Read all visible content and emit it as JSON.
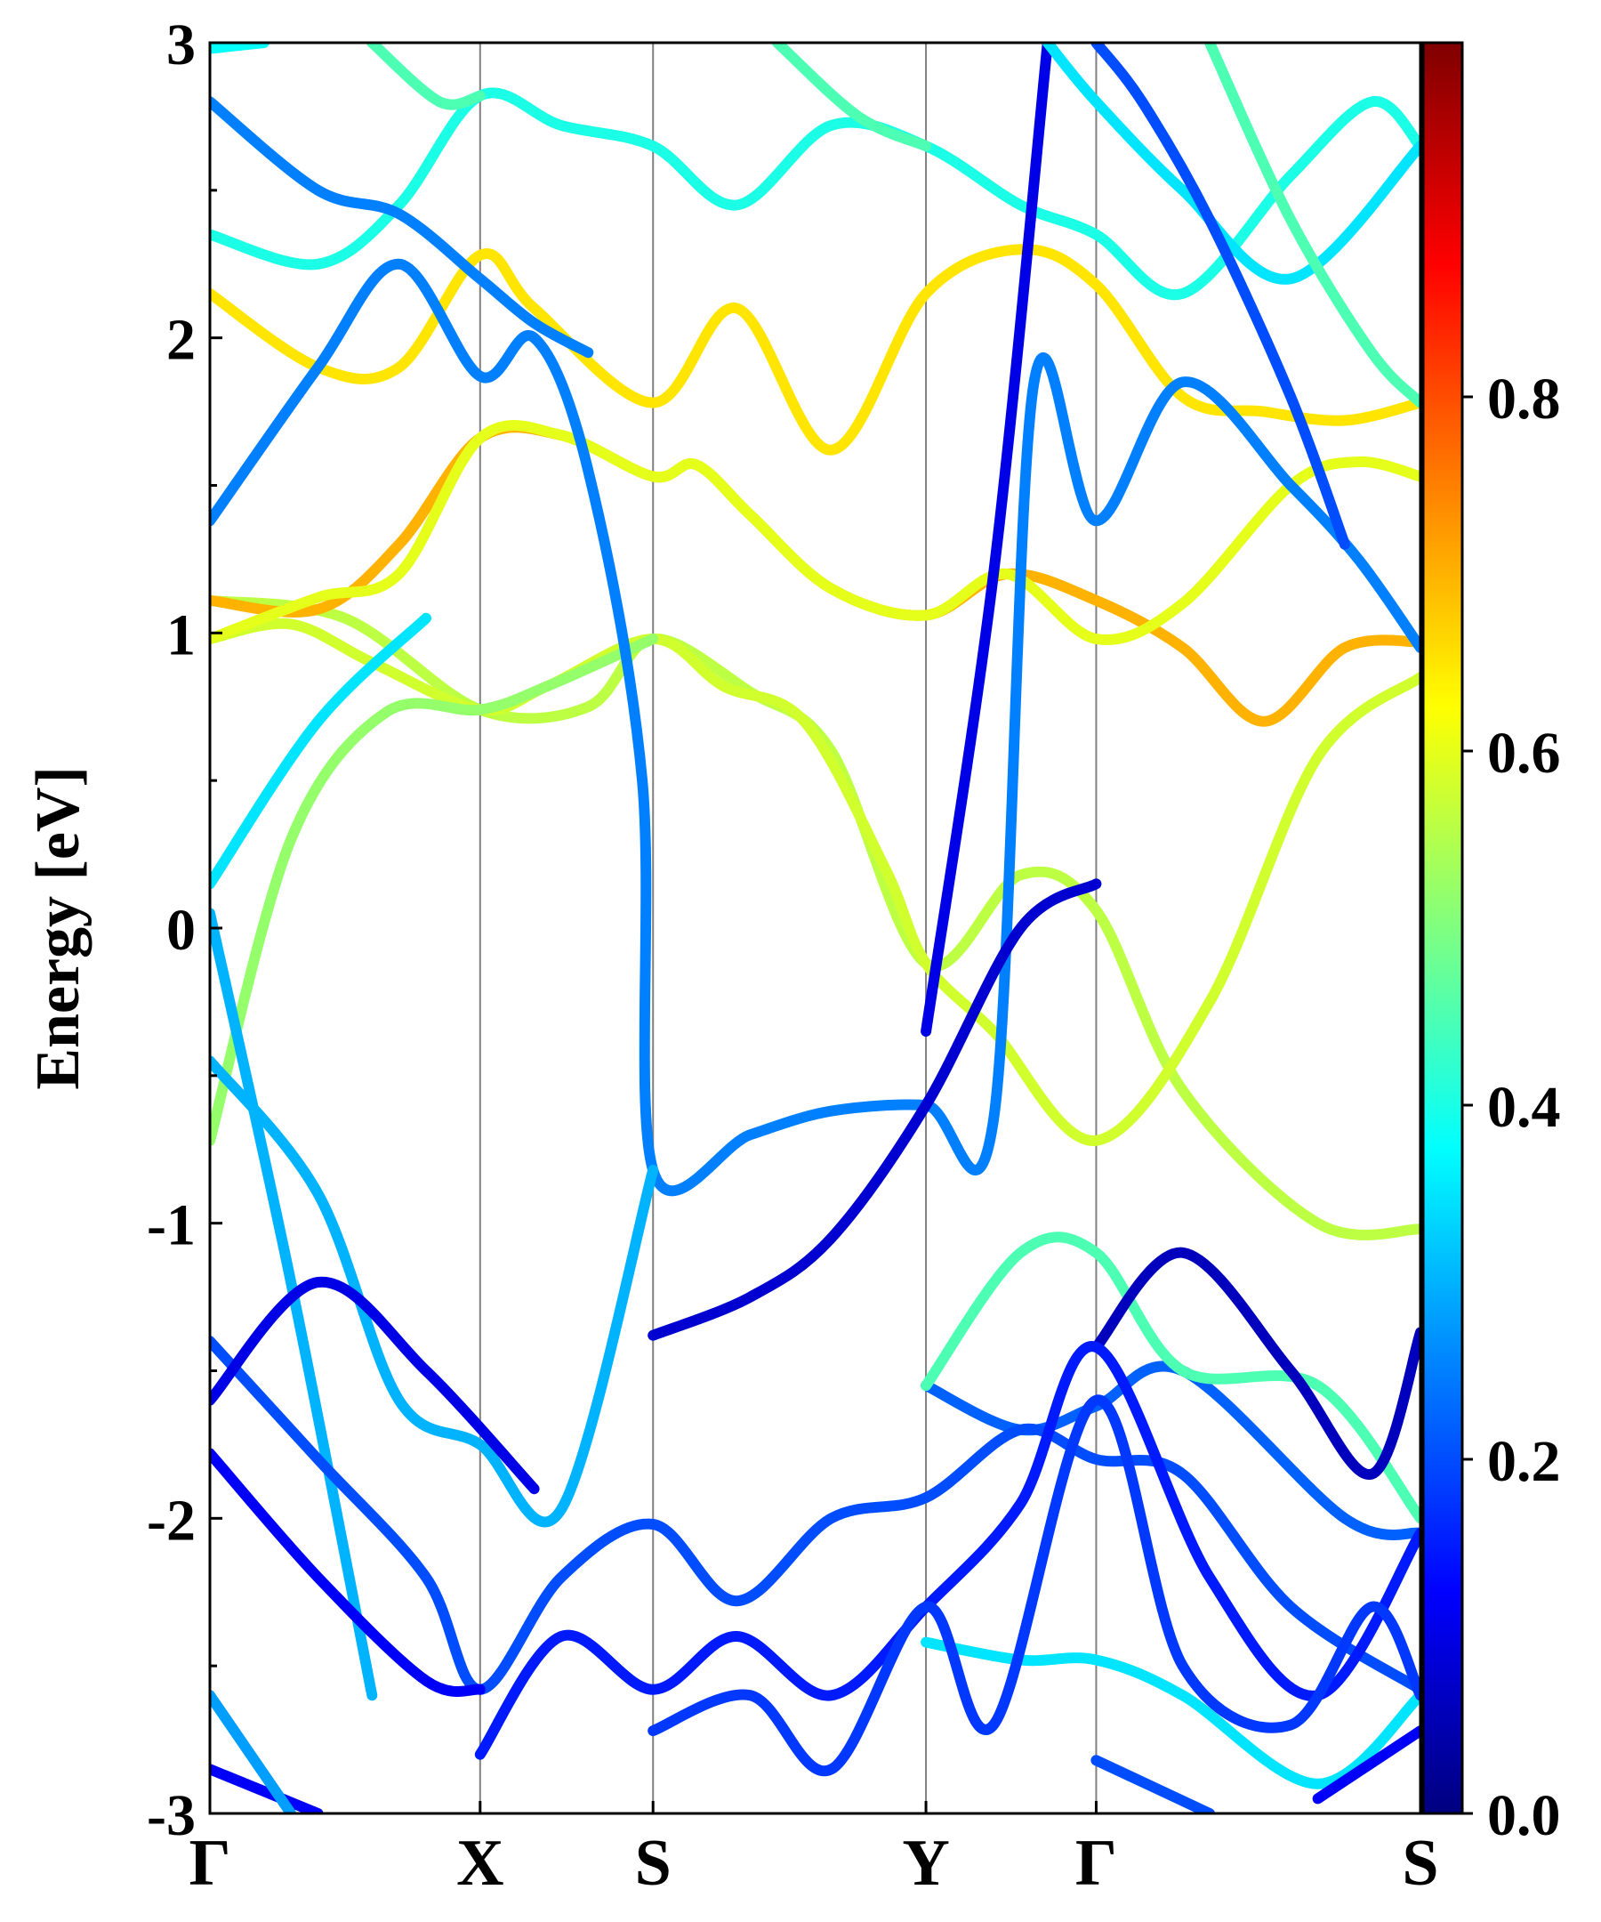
{
  "chart_data": {
    "type": "line",
    "ylabel": "Energy [eV]",
    "xlabel": "",
    "ylim": [
      -3,
      3
    ],
    "y_ticks": [
      "-3",
      "-2",
      "-1",
      "0",
      "1",
      "2",
      "3"
    ],
    "kpath": [
      "Γ",
      "X",
      "S",
      "Y",
      "Γ",
      "S"
    ],
    "kpath_positions": [
      0,
      1.0,
      1.64,
      2.65,
      3.28,
      4.48
    ],
    "grid": false,
    "colorbar": {
      "colormap": "jet",
      "range": [
        0,
        1
      ],
      "ticks": [
        "0.0",
        "0.2",
        "0.4",
        "0.6",
        "0.8"
      ]
    },
    "series": [
      {
        "c": 0.56,
        "pts": [
          [
            0,
            1.11
          ],
          [
            0.5,
            1.05
          ],
          [
            1.0,
            0.74
          ],
          [
            1.4,
            0.75
          ],
          [
            1.64,
            0.98
          ],
          [
            2.0,
            0.8
          ],
          [
            2.3,
            0.6
          ],
          [
            2.65,
            -0.12
          ],
          [
            3.0,
            0.18
          ],
          [
            3.28,
            0.06
          ],
          [
            3.6,
            -0.55
          ],
          [
            4.1,
            -1.0
          ],
          [
            4.48,
            -1.02
          ]
        ]
      },
      {
        "c": 0.58,
        "pts": [
          [
            0,
            0.98
          ],
          [
            0.3,
            1.03
          ],
          [
            0.6,
            0.9
          ],
          [
            1.0,
            0.74
          ],
          [
            1.25,
            0.82
          ],
          [
            1.64,
            0.98
          ],
          [
            1.9,
            0.82
          ],
          [
            2.2,
            0.7
          ],
          [
            2.5,
            0.2
          ],
          [
            2.65,
            -0.12
          ],
          [
            2.9,
            -0.35
          ],
          [
            3.28,
            -0.72
          ],
          [
            3.7,
            -0.25
          ],
          [
            4.1,
            0.58
          ],
          [
            4.48,
            0.85
          ]
        ]
      },
      {
        "c": 0.52,
        "pts": [
          [
            0,
            -0.72
          ],
          [
            0.3,
            0.3
          ],
          [
            0.65,
            0.73
          ],
          [
            1.0,
            0.74
          ],
          [
            1.25,
            0.82
          ],
          [
            1.64,
            0.98
          ]
        ]
      },
      {
        "c": 0.7,
        "pts": [
          [
            0,
            1.11
          ],
          [
            0.4,
            1.08
          ],
          [
            0.7,
            1.3
          ],
          [
            1.0,
            1.66
          ],
          [
            1.3,
            1.67
          ],
          [
            1.64,
            1.53
          ],
          [
            1.8,
            1.57
          ],
          [
            2.0,
            1.4
          ],
          [
            2.3,
            1.15
          ],
          [
            2.65,
            1.06
          ],
          [
            2.95,
            1.2
          ],
          [
            3.28,
            1.11
          ],
          [
            3.6,
            0.95
          ],
          [
            3.9,
            0.7
          ],
          [
            4.2,
            0.95
          ],
          [
            4.48,
            0.97
          ]
        ]
      },
      {
        "c": 0.6,
        "pts": [
          [
            0,
            0.98
          ],
          [
            0.4,
            1.12
          ],
          [
            0.7,
            1.2
          ],
          [
            1.0,
            1.66
          ],
          [
            1.3,
            1.67
          ],
          [
            1.64,
            1.53
          ],
          [
            1.8,
            1.57
          ],
          [
            2.0,
            1.4
          ],
          [
            2.3,
            1.15
          ],
          [
            2.65,
            1.06
          ],
          [
            2.95,
            1.2
          ],
          [
            3.28,
            0.98
          ],
          [
            3.6,
            1.1
          ],
          [
            4.0,
            1.5
          ],
          [
            4.25,
            1.58
          ],
          [
            4.48,
            1.53
          ]
        ]
      },
      {
        "c": 0.65,
        "pts": [
          [
            0,
            2.15
          ],
          [
            0.4,
            1.9
          ],
          [
            0.7,
            1.9
          ],
          [
            1.0,
            2.28
          ],
          [
            1.2,
            2.1
          ],
          [
            1.64,
            1.78
          ],
          [
            1.95,
            2.1
          ],
          [
            2.3,
            1.62
          ],
          [
            2.65,
            2.15
          ],
          [
            3.0,
            2.3
          ],
          [
            3.28,
            2.18
          ],
          [
            3.6,
            1.8
          ],
          [
            3.9,
            1.75
          ],
          [
            4.2,
            1.72
          ],
          [
            4.48,
            1.78
          ]
        ]
      },
      {
        "c": 0.4,
        "pts": [
          [
            0,
            2.35
          ],
          [
            0.4,
            2.25
          ],
          [
            0.7,
            2.45
          ],
          [
            1.0,
            2.82
          ],
          [
            1.3,
            2.72
          ],
          [
            1.64,
            2.65
          ],
          [
            1.95,
            2.45
          ],
          [
            2.3,
            2.72
          ],
          [
            2.65,
            2.65
          ],
          [
            3.0,
            2.45
          ],
          [
            3.28,
            2.35
          ],
          [
            3.6,
            2.15
          ],
          [
            4.0,
            2.55
          ],
          [
            4.3,
            2.8
          ],
          [
            4.48,
            2.65
          ]
        ]
      },
      {
        "c": 0.25,
        "pts": [
          [
            0,
            1.38
          ],
          [
            0.4,
            1.9
          ],
          [
            0.7,
            2.25
          ],
          [
            1.0,
            1.87
          ],
          [
            1.2,
            2.0
          ],
          [
            1.4,
            1.55
          ],
          [
            1.6,
            0.5
          ],
          [
            1.64,
            -0.82
          ],
          [
            2.0,
            -0.7
          ],
          [
            2.3,
            -0.62
          ],
          [
            2.65,
            -0.6
          ],
          [
            2.9,
            -0.65
          ],
          [
            3.05,
            1.85
          ],
          [
            3.28,
            1.38
          ],
          [
            3.6,
            1.85
          ],
          [
            4.0,
            1.5
          ],
          [
            4.25,
            1.25
          ],
          [
            4.48,
            0.95
          ]
        ]
      },
      {
        "c": 0.25,
        "pts": [
          [
            0,
            2.8
          ],
          [
            0.4,
            2.5
          ],
          [
            0.7,
            2.42
          ],
          [
            1.0,
            2.2
          ],
          [
            1.2,
            2.05
          ],
          [
            1.4,
            1.95
          ]
        ]
      },
      {
        "c": 0.35,
        "pts": [
          [
            0,
            0.15
          ],
          [
            0.4,
            0.7
          ],
          [
            0.8,
            1.05
          ]
        ]
      },
      {
        "c": 0.08,
        "pts": [
          [
            1.64,
            -1.38
          ],
          [
            2.0,
            -1.25
          ],
          [
            2.3,
            -1.05
          ],
          [
            2.65,
            -0.6
          ],
          [
            3.0,
            0.0
          ],
          [
            3.28,
            0.15
          ]
        ]
      },
      {
        "c": 0.1,
        "pts": [
          [
            2.65,
            -0.35
          ],
          [
            2.9,
            1.2
          ],
          [
            3.1,
            3.0
          ]
        ]
      },
      {
        "c": 0.22,
        "pts": [
          [
            2.65,
            -1.55
          ],
          [
            3.0,
            -1.7
          ],
          [
            3.28,
            -1.62
          ],
          [
            3.6,
            -1.5
          ],
          [
            4.2,
            -2.0
          ],
          [
            4.48,
            -2.05
          ]
        ]
      },
      {
        "c": 0.3,
        "pts": [
          [
            0,
            -0.45
          ],
          [
            0.4,
            -0.9
          ],
          [
            0.7,
            -1.6
          ],
          [
            1.0,
            -1.75
          ],
          [
            1.3,
            -1.97
          ],
          [
            1.64,
            -0.82
          ]
        ]
      },
      {
        "c": 0.3,
        "pts": [
          [
            0,
            0.05
          ],
          [
            0.3,
            -1.2
          ],
          [
            0.6,
            -2.6
          ]
        ]
      },
      {
        "c": 0.45,
        "pts": [
          [
            2.65,
            -1.55
          ],
          [
            3.0,
            -1.1
          ],
          [
            3.28,
            -1.1
          ],
          [
            3.6,
            -1.5
          ],
          [
            4.1,
            -1.55
          ],
          [
            4.48,
            -2.0
          ]
        ]
      },
      {
        "c": 0.2,
        "pts": [
          [
            0,
            -1.4
          ],
          [
            0.4,
            -1.8
          ],
          [
            0.8,
            -2.2
          ],
          [
            1.0,
            -2.58
          ],
          [
            1.3,
            -2.2
          ],
          [
            1.64,
            -2.02
          ],
          [
            1.95,
            -2.28
          ],
          [
            2.3,
            -2.0
          ],
          [
            2.65,
            -1.93
          ],
          [
            3.0,
            -1.7
          ],
          [
            3.28,
            -1.8
          ],
          [
            3.6,
            -1.85
          ],
          [
            4.0,
            -2.3
          ],
          [
            4.48,
            -2.58
          ]
        ]
      },
      {
        "c": 0.1,
        "pts": [
          [
            0,
            -1.6
          ],
          [
            0.4,
            -1.2
          ],
          [
            0.8,
            -1.5
          ],
          [
            1.2,
            -1.9
          ]
        ]
      },
      {
        "c": 0.06,
        "pts": [
          [
            3.28,
            -1.42
          ],
          [
            3.6,
            -1.1
          ],
          [
            4.0,
            -1.5
          ],
          [
            4.3,
            -1.85
          ],
          [
            4.48,
            -1.37
          ]
        ]
      },
      {
        "c": 0.12,
        "pts": [
          [
            0,
            -1.78
          ],
          [
            0.4,
            -2.2
          ],
          [
            0.8,
            -2.55
          ],
          [
            1.0,
            -2.58
          ]
        ]
      },
      {
        "c": 0.15,
        "pts": [
          [
            1.0,
            -2.8
          ],
          [
            1.3,
            -2.4
          ],
          [
            1.64,
            -2.58
          ],
          [
            1.95,
            -2.4
          ],
          [
            2.3,
            -2.6
          ],
          [
            2.65,
            -2.3
          ],
          [
            3.0,
            -1.95
          ],
          [
            3.28,
            -1.42
          ],
          [
            3.7,
            -2.2
          ],
          [
            4.1,
            -2.6
          ],
          [
            4.48,
            -2.05
          ]
        ]
      },
      {
        "c": 0.35,
        "pts": [
          [
            2.65,
            -2.42
          ],
          [
            3.0,
            -2.48
          ],
          [
            3.28,
            -2.48
          ],
          [
            3.6,
            -2.6
          ],
          [
            4.1,
            -2.9
          ],
          [
            4.48,
            -2.6
          ]
        ]
      },
      {
        "c": 0.18,
        "pts": [
          [
            1.64,
            -2.72
          ],
          [
            2.0,
            -2.6
          ],
          [
            2.3,
            -2.85
          ],
          [
            2.65,
            -2.3
          ],
          [
            2.9,
            -2.7
          ],
          [
            3.28,
            -1.6
          ],
          [
            3.6,
            -2.5
          ],
          [
            4.0,
            -2.7
          ],
          [
            4.3,
            -2.3
          ],
          [
            4.48,
            -2.6
          ]
        ]
      },
      {
        "c": 0.12,
        "pts": [
          [
            0,
            -2.85
          ],
          [
            0.4,
            -3.0
          ]
        ]
      },
      {
        "c": 0.2,
        "pts": [
          [
            3.28,
            -2.82
          ],
          [
            3.7,
            -3.0
          ]
        ]
      },
      {
        "c": 0.28,
        "pts": [
          [
            0,
            -2.6
          ],
          [
            0.3,
            -3.0
          ]
        ]
      },
      {
        "c": 0.12,
        "pts": [
          [
            4.1,
            -2.95
          ],
          [
            4.48,
            -2.72
          ]
        ]
      },
      {
        "c": 0.45,
        "pts": [
          [
            0.6,
            3.0
          ],
          [
            0.85,
            2.8
          ],
          [
            1.0,
            2.82
          ]
        ]
      },
      {
        "c": 0.45,
        "pts": [
          [
            2.1,
            3.0
          ],
          [
            2.4,
            2.75
          ],
          [
            2.65,
            2.65
          ]
        ]
      },
      {
        "c": 0.35,
        "pts": [
          [
            3.1,
            3.0
          ],
          [
            3.28,
            2.8
          ],
          [
            3.6,
            2.5
          ],
          [
            4.0,
            2.2
          ],
          [
            4.48,
            2.65
          ]
        ]
      },
      {
        "c": 0.45,
        "pts": [
          [
            3.7,
            3.0
          ],
          [
            4.0,
            2.4
          ],
          [
            4.3,
            1.95
          ],
          [
            4.48,
            1.78
          ]
        ]
      },
      {
        "c": 0.38,
        "pts": [
          [
            0,
            2.98
          ],
          [
            0.2,
            3.0
          ]
        ]
      },
      {
        "c": 0.2,
        "pts": [
          [
            3.28,
            3.0
          ],
          [
            3.45,
            2.8
          ],
          [
            3.7,
            2.4
          ],
          [
            4.0,
            1.8
          ],
          [
            4.2,
            1.3
          ]
        ]
      }
    ]
  }
}
